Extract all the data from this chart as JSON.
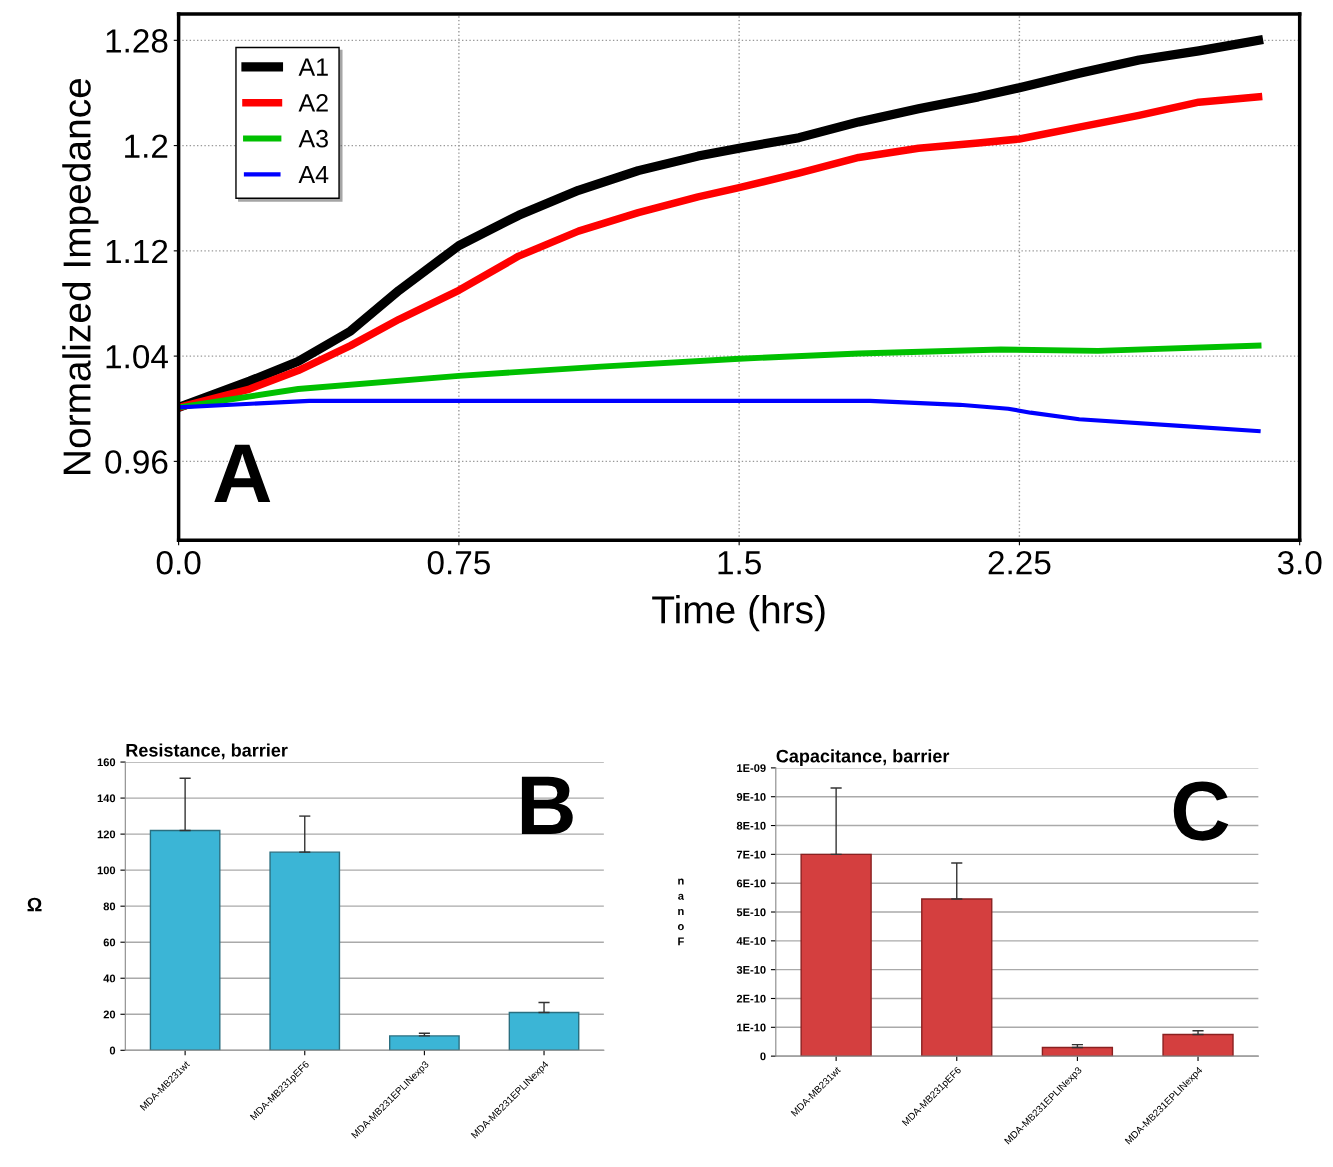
{
  "chart_data": [
    {
      "type": "line",
      "xlabel": "Time (hrs)",
      "ylabel": "Normalized Impedance",
      "xlim": [
        0,
        3.0
      ],
      "ylim": [
        0.9,
        1.3
      ],
      "xticks": [
        {
          "value": 0,
          "label": "0.0"
        },
        0.75,
        1.5,
        2.25,
        {
          "value": 3,
          "label": "3.0"
        }
      ],
      "yticks": [
        0.96,
        1.04,
        1.12,
        1.2,
        1.28
      ],
      "grid": true,
      "legend": "top left",
      "line_style": "solid",
      "marker": "none",
      "annotations": [
        "A"
      ],
      "series": [
        {
          "name": "A1",
          "color": "#000000",
          "x": [
            0,
            0.19,
            0.32,
            0.46,
            0.59,
            0.75,
            0.91,
            1.07,
            1.23,
            1.39,
            1.5,
            1.66,
            1.82,
            1.98,
            2.14,
            2.25,
            2.41,
            2.57,
            2.73,
            2.89
          ],
          "values": [
            1.001,
            1.021,
            1.036,
            1.059,
            1.09,
            1.124,
            1.147,
            1.166,
            1.181,
            1.192,
            1.198,
            1.206,
            1.218,
            1.228,
            1.237,
            1.244,
            1.255,
            1.265,
            1.272,
            1.28
          ]
        },
        {
          "name": "A2",
          "color": "#ff0000",
          "x": [
            0,
            0.19,
            0.32,
            0.46,
            0.59,
            0.75,
            0.91,
            1.07,
            1.23,
            1.39,
            1.5,
            1.66,
            1.82,
            1.98,
            2.14,
            2.25,
            2.41,
            2.57,
            2.73,
            2.89
          ],
          "values": [
            1.001,
            1.015,
            1.029,
            1.048,
            1.068,
            1.09,
            1.116,
            1.135,
            1.149,
            1.161,
            1.168,
            1.179,
            1.191,
            1.198,
            1.202,
            1.205,
            1.214,
            1.223,
            1.233,
            1.237
          ]
        },
        {
          "name": "A3",
          "color": "#00c000",
          "x": [
            0,
            0.32,
            0.75,
            1.13,
            1.5,
            1.82,
            2.2,
            2.46,
            2.89
          ],
          "values": [
            1.001,
            1.015,
            1.025,
            1.032,
            1.038,
            1.042,
            1.045,
            1.044,
            1.048
          ]
        },
        {
          "name": "A4",
          "color": "#0000ff",
          "x": [
            0,
            0.35,
            1.85,
            2.09,
            2.22,
            2.28,
            2.41,
            2.68,
            2.89
          ],
          "values": [
            1.001,
            1.006,
            1.006,
            1.003,
            1.0,
            0.997,
            0.992,
            0.987,
            0.983
          ]
        }
      ]
    },
    {
      "type": "bar",
      "title": "Resistance, barrier",
      "ylabel": "Ω",
      "ylim": [
        0,
        160
      ],
      "yticks": [
        0,
        20,
        40,
        60,
        80,
        100,
        120,
        140,
        160
      ],
      "grid": "y",
      "legend": false,
      "annotations": [
        "B"
      ],
      "categories": [
        "MDA-MB231wt",
        "MDA-MB231pEF6",
        "MDA-MB231EPLINexp3",
        "MDA-MB231EPLINexp4"
      ],
      "color": "#3bb5d6",
      "values": [
        122,
        110,
        8,
        21
      ],
      "errors": [
        [
          122,
          151
        ],
        [
          110,
          130
        ],
        [
          8,
          9.5
        ],
        [
          21,
          26.5
        ]
      ]
    },
    {
      "type": "bar",
      "title": "Capacitance, barrier",
      "ylabel": "nanoF",
      "ylim": [
        0,
        1e-09
      ],
      "yticks": [
        0,
        {
          "value": 1e-10,
          "label": "1E-10"
        },
        {
          "value": 2e-10,
          "label": "2E-10"
        },
        {
          "value": 3e-10,
          "label": "3E-10"
        },
        {
          "value": 4e-10,
          "label": "4E-10"
        },
        {
          "value": 5e-10,
          "label": "5E-10"
        },
        {
          "value": 6e-10,
          "label": "6E-10"
        },
        {
          "value": 7e-10,
          "label": "7E-10"
        },
        {
          "value": 8e-10,
          "label": "8E-10"
        },
        {
          "value": 9e-10,
          "label": "9E-10"
        },
        {
          "value": 1e-09,
          "label": "1E-09"
        }
      ],
      "grid": "y",
      "legend": false,
      "annotations": [
        "C"
      ],
      "categories": [
        "MDA-MB231wt",
        "MDA-MB231pEF6",
        "MDA-MB231EPLINexp3",
        "MDA-MB231EPLINexp4"
      ],
      "color": "#d43f3f",
      "values": [
        7e-10,
        5.45e-10,
        3e-11,
        7.5e-11
      ],
      "errors": [
        [
          7e-10,
          9.3e-10
        ],
        [
          5.45e-10,
          6.7e-10
        ],
        [
          3e-11,
          4e-11
        ],
        [
          7.5e-11,
          8.8e-11
        ]
      ]
    }
  ]
}
